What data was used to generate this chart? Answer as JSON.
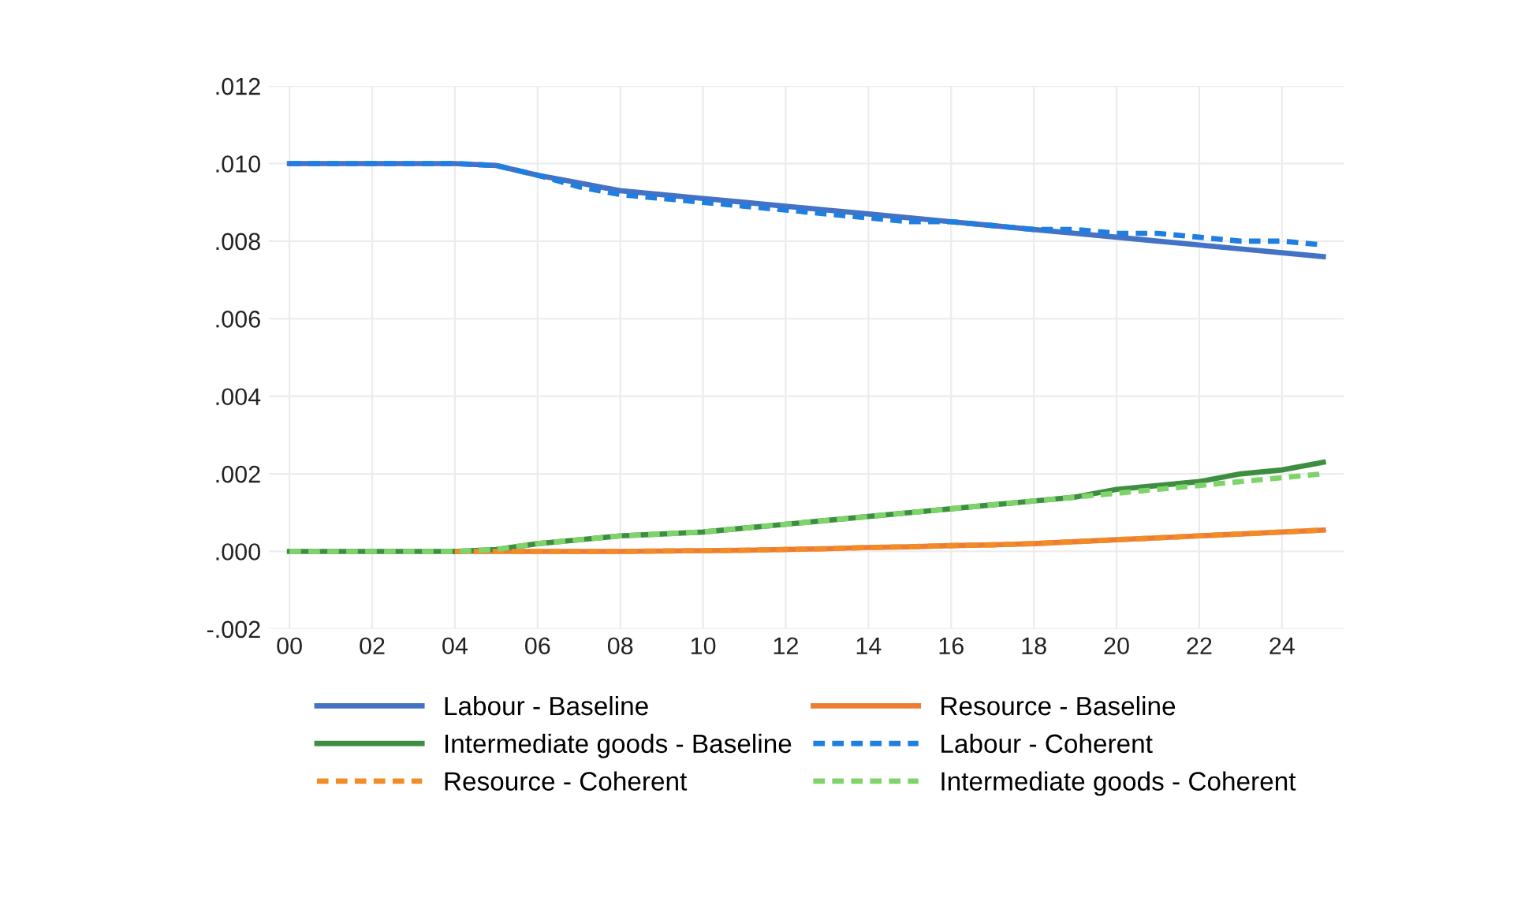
{
  "chart_data": {
    "type": "line",
    "x": [
      0,
      1,
      2,
      3,
      4,
      5,
      6,
      7,
      8,
      9,
      10,
      11,
      12,
      13,
      14,
      15,
      16,
      17,
      18,
      19,
      20,
      21,
      22,
      23,
      24,
      25
    ],
    "xlim": [
      -0.5,
      25.5
    ],
    "xticks": [
      {
        "value": 0,
        "label": "00"
      },
      {
        "value": 2,
        "label": "02"
      },
      {
        "value": 4,
        "label": "04"
      },
      {
        "value": 6,
        "label": "06"
      },
      {
        "value": 8,
        "label": "08"
      },
      {
        "value": 10,
        "label": "10"
      },
      {
        "value": 12,
        "label": "12"
      },
      {
        "value": 14,
        "label": "14"
      },
      {
        "value": 16,
        "label": "16"
      },
      {
        "value": 18,
        "label": "18"
      },
      {
        "value": 20,
        "label": "20"
      },
      {
        "value": 22,
        "label": "22"
      },
      {
        "value": 24,
        "label": "24"
      }
    ],
    "ylim": [
      -0.002,
      0.012
    ],
    "yticks": [
      {
        "value": -0.002,
        "label": "-.002"
      },
      {
        "value": 0,
        "label": ".000"
      },
      {
        "value": 0.002,
        "label": ".002"
      },
      {
        "value": 0.004,
        "label": ".004"
      },
      {
        "value": 0.006,
        "label": ".006"
      },
      {
        "value": 0.008,
        "label": ".008"
      },
      {
        "value": 0.01,
        "label": ".010"
      },
      {
        "value": 0.012,
        "label": ".012"
      }
    ],
    "grid": true,
    "legend": "bottom",
    "series": [
      {
        "name": "Labour - Baseline",
        "color": "#4472c4",
        "line_style": "solid",
        "values": [
          0.01,
          0.01,
          0.01,
          0.01,
          0.01,
          0.00995,
          0.0097,
          0.0095,
          0.0093,
          0.0092,
          0.0091,
          0.009,
          0.0089,
          0.0088,
          0.0087,
          0.0086,
          0.0085,
          0.0084,
          0.0083,
          0.0082,
          0.0081,
          0.008,
          0.0079,
          0.0078,
          0.0077,
          0.0076
        ]
      },
      {
        "name": "Resource - Baseline",
        "color": "#ed7d31",
        "line_style": "solid",
        "values": [
          null,
          null,
          null,
          null,
          0,
          0,
          0,
          0,
          0,
          1e-05,
          2e-05,
          3e-05,
          5e-05,
          7e-05,
          0.0001,
          0.00012,
          0.00015,
          0.00017,
          0.0002,
          0.00025,
          0.0003,
          0.00035,
          0.0004,
          0.00045,
          0.0005,
          0.00055
        ]
      },
      {
        "name": "Intermediate goods - Baseline",
        "color": "#3e8e41",
        "line_style": "solid",
        "values": [
          0,
          0,
          0,
          0,
          0,
          5e-05,
          0.0002,
          0.0003,
          0.0004,
          0.00045,
          0.0005,
          0.0006,
          0.0007,
          0.0008,
          0.0009,
          0.001,
          0.0011,
          0.0012,
          0.0013,
          0.0014,
          0.0016,
          0.0017,
          0.0018,
          0.002,
          0.0021,
          0.0023
        ]
      },
      {
        "name": "Labour - Coherent",
        "color": "#1f7fe0",
        "line_style": "dashed",
        "values": [
          0.01,
          0.01,
          0.01,
          0.01,
          0.01,
          0.00995,
          0.0097,
          0.0094,
          0.0092,
          0.0091,
          0.009,
          0.0089,
          0.0088,
          0.0087,
          0.0086,
          0.0085,
          0.0085,
          0.0084,
          0.0083,
          0.0083,
          0.0082,
          0.0082,
          0.0081,
          0.008,
          0.008,
          0.0079
        ]
      },
      {
        "name": "Resource - Coherent",
        "color": "#f28c28",
        "line_style": "dashed",
        "values": [
          null,
          null,
          null,
          null,
          0,
          0,
          0,
          0,
          0,
          1e-05,
          2e-05,
          3e-05,
          5e-05,
          7e-05,
          0.0001,
          0.00012,
          0.00015,
          0.00017,
          0.0002,
          0.00025,
          0.0003,
          0.00035,
          0.0004,
          0.00045,
          0.0005,
          0.00055
        ]
      },
      {
        "name": "Intermediate goods - Coherent",
        "color": "#7fd36b",
        "line_style": "dashed",
        "values": [
          0,
          0,
          0,
          0,
          0,
          5e-05,
          0.0002,
          0.0003,
          0.0004,
          0.00045,
          0.0005,
          0.0006,
          0.0007,
          0.0008,
          0.0009,
          0.001,
          0.0011,
          0.0012,
          0.0013,
          0.0014,
          0.0015,
          0.0016,
          0.0017,
          0.0018,
          0.0019,
          0.002
        ]
      }
    ]
  }
}
